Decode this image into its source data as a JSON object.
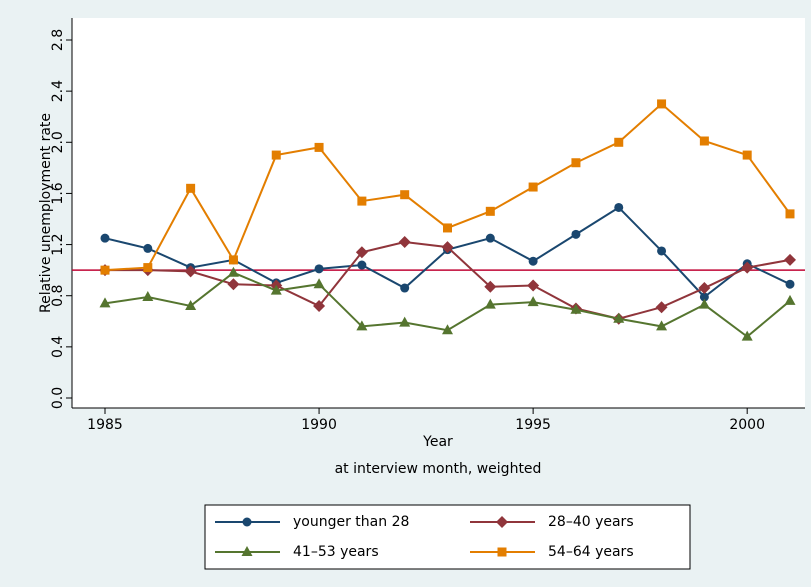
{
  "chart_data": {
    "type": "line",
    "x_label": "Year",
    "x_subtitle": "at interview month, weighted",
    "y_label": "Relative unemployment rate",
    "x": [
      1985,
      1986,
      1987,
      1988,
      1989,
      1990,
      1991,
      1992,
      1993,
      1994,
      1995,
      1996,
      1997,
      1998,
      1999,
      2000,
      2001
    ],
    "series": [
      {
        "name": "younger than 28",
        "color": "#1a476f",
        "marker": "circle",
        "values": [
          1.25,
          1.17,
          1.02,
          1.08,
          0.9,
          1.01,
          1.04,
          0.86,
          1.16,
          1.25,
          1.07,
          1.28,
          1.49,
          1.15,
          0.79,
          1.05,
          0.89
        ]
      },
      {
        "name": "28–40 years",
        "color": "#90353b",
        "marker": "diamond",
        "values": [
          1.0,
          1.0,
          0.99,
          0.89,
          0.88,
          0.72,
          1.14,
          1.22,
          1.18,
          0.87,
          0.88,
          0.7,
          0.62,
          0.71,
          0.86,
          1.02,
          1.08
        ]
      },
      {
        "name": "41–53 years",
        "color": "#55752f",
        "marker": "triangle",
        "values": [
          0.74,
          0.79,
          0.72,
          0.98,
          0.84,
          0.89,
          0.56,
          0.59,
          0.53,
          0.73,
          0.75,
          0.69,
          0.62,
          0.56,
          0.73,
          0.48,
          0.76
        ]
      },
      {
        "name": "54–64 years",
        "color": "#e37e00",
        "marker": "square",
        "values": [
          1.0,
          1.02,
          1.64,
          1.08,
          1.9,
          1.96,
          1.54,
          1.59,
          1.33,
          1.46,
          1.65,
          1.84,
          2.0,
          2.3,
          2.01,
          1.9,
          1.44
        ]
      }
    ],
    "xlim": [
      1985,
      2001
    ],
    "xticks": [
      1985,
      1990,
      1995,
      2000
    ],
    "ylim": [
      0,
      2.8
    ],
    "yticks": [
      {
        "value": 0,
        "label": "0.0"
      },
      0.4,
      0.8,
      1.2,
      1.6,
      {
        "value": 2,
        "label": "2.0"
      },
      2.4,
      2.8
    ],
    "reference_line": 1,
    "reference_color": "#c10534",
    "legend_position": "bottom"
  }
}
